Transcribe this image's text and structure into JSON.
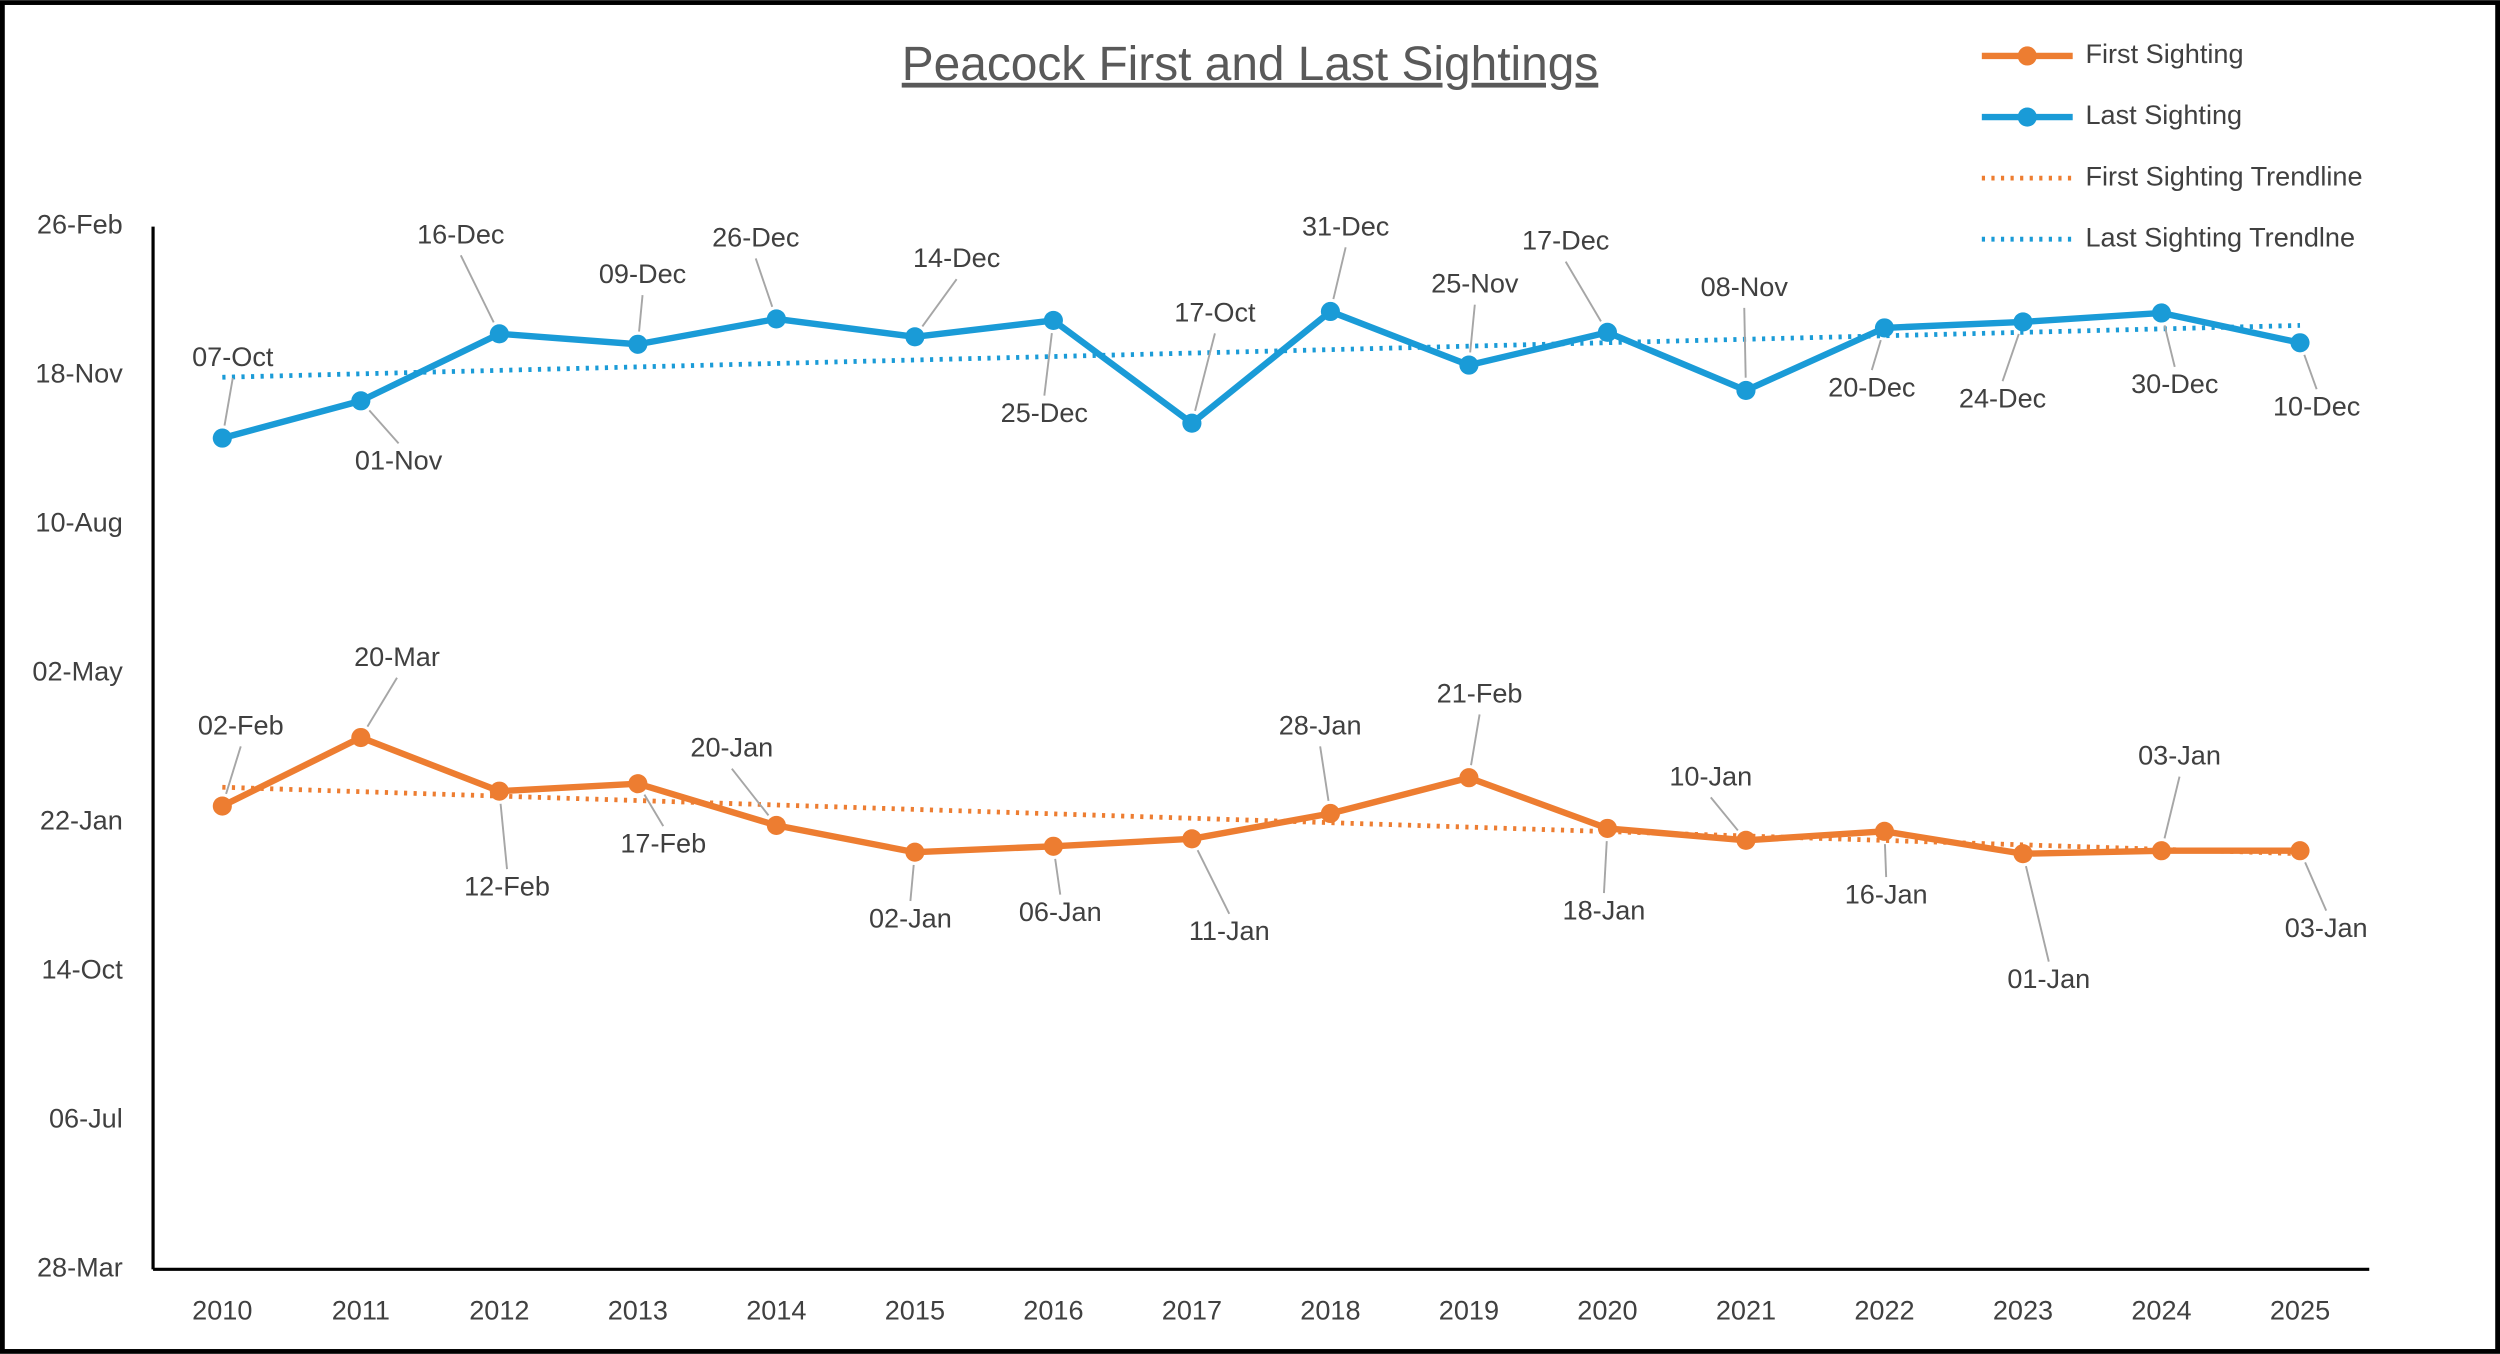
{
  "chart_data": {
    "type": "line",
    "title": "Peacock First and Last Sightings",
    "categories": [
      "2010",
      "2011",
      "2012",
      "2013",
      "2014",
      "2015",
      "2016",
      "2017",
      "2018",
      "2019",
      "2020",
      "2021",
      "2022",
      "2023",
      "2024",
      "2025"
    ],
    "series": [
      {
        "name": "First Sighting",
        "color": "#ed7d31",
        "values": [
          399,
          445,
          409,
          414,
          386,
          368,
          372,
          377,
          394,
          418,
          384,
          376,
          382,
          367,
          369,
          369
        ],
        "value_labels": [
          "02-Feb",
          "20-Mar",
          "12-Feb",
          "17-Feb",
          "20-Jan",
          "02-Jan",
          "06-Jan",
          "11-Jan",
          "28-Jan",
          "21-Feb",
          "18-Jan",
          "10-Jan",
          "16-Jan",
          "01-Jan",
          "03-Jan",
          "03-Jan"
        ],
        "trendline": {
          "name": "First Sighting Trendline",
          "color": "#ed7d31"
        }
      },
      {
        "name": "Last Sighting",
        "color": "#1a9bd7",
        "values": [
          646,
          671,
          716,
          709,
          726,
          714,
          725,
          656,
          731,
          695,
          717,
          678,
          720,
          724,
          730,
          710
        ],
        "value_labels": [
          "07-Oct",
          "01-Nov",
          "16-Dec",
          "09-Dec",
          "26-Dec",
          "14-Dec",
          "25-Dec",
          "17-Oct",
          "31-Dec",
          "25-Nov",
          "17-Dec",
          "08-Nov",
          "20-Dec",
          "24-Dec",
          "30-Dec",
          "10-Dec"
        ],
        "trendline": {
          "name": "Last Sighting Trendlne",
          "color": "#1a9bd7"
        }
      }
    ],
    "ylim": [
      88,
      788
    ],
    "yticks": [
      {
        "value": 88,
        "label": "28-Mar"
      },
      {
        "value": 188,
        "label": "06-Jul"
      },
      {
        "value": 288,
        "label": "14-Oct"
      },
      {
        "value": 388,
        "label": "22-Jan"
      },
      {
        "value": 488,
        "label": "02-May"
      },
      {
        "value": 588,
        "label": "10-Aug"
      },
      {
        "value": 688,
        "label": "18-Nov"
      },
      {
        "value": 788,
        "label": "26-Feb"
      }
    ],
    "grid": false,
    "legend": "top-right"
  }
}
